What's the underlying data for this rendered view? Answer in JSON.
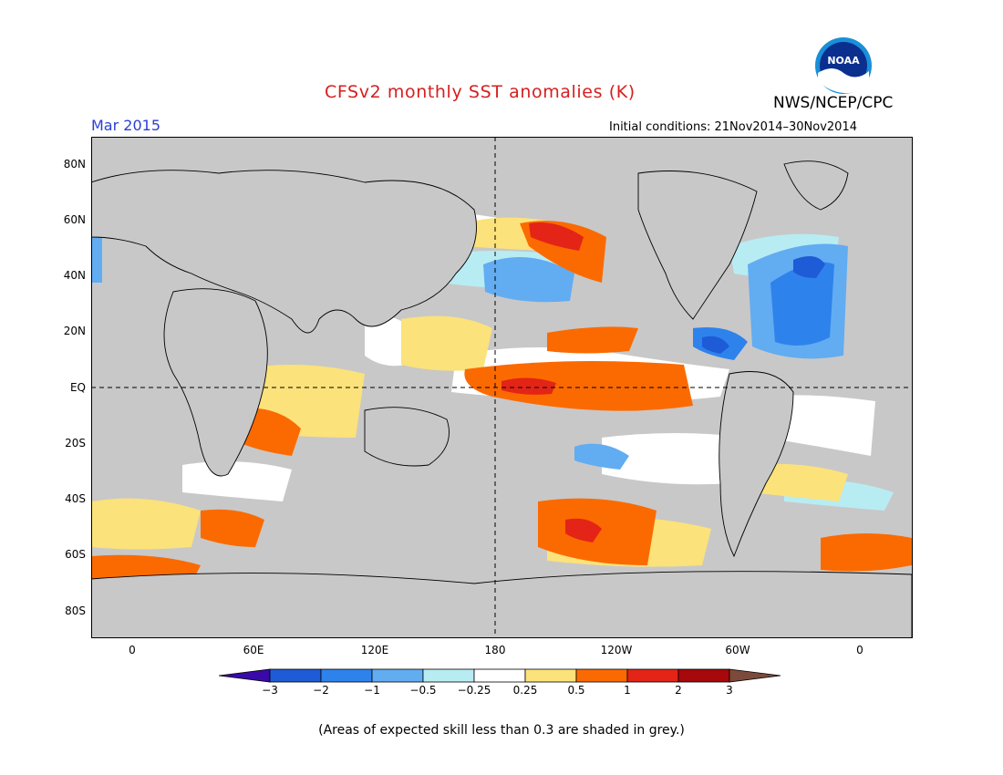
{
  "title": "CFSv2 monthly SST anomalies (K)",
  "period": "Mar 2015",
  "initial_conditions": "Initial conditions: 21Nov2014–30Nov2014",
  "agency": "NWS/NCEP/CPC",
  "logo_text": "NOAA",
  "lat_labels": [
    "80N",
    "60N",
    "40N",
    "20N",
    "EQ",
    "20S",
    "40S",
    "60S",
    "80S"
  ],
  "lon_labels": [
    "0",
    "60E",
    "120E",
    "180",
    "120W",
    "60W",
    "0"
  ],
  "colorbar": {
    "labels": [
      "−3",
      "−2",
      "−1",
      "−0.5",
      "−0.25",
      "0.25",
      "0.5",
      "1",
      "2",
      "3"
    ],
    "colors": [
      "#3a0aa8",
      "#1e5bd6",
      "#2e82ec",
      "#62acf2",
      "#b8ecf3",
      "#ffffff",
      "#fbe27a",
      "#fb6a00",
      "#e32417",
      "#a6080b",
      "#7c4a3b"
    ]
  },
  "footnote": "(Areas of expected skill less than 0.3 are shaded in grey.)",
  "colors": {
    "title": "#d61f1f",
    "period": "#2a3fd6",
    "grey_mask": "#c8c8c8"
  }
}
